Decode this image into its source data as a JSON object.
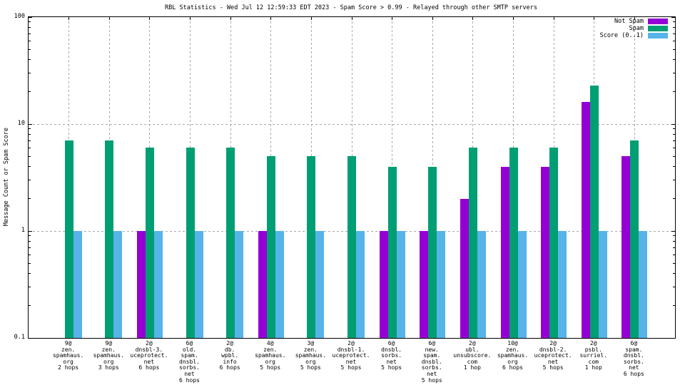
{
  "title": "RBL Statistics - Wed Jul 12 12:59:33 EDT 2023 - Spam Score > 0.99 - Relayed through other SMTP servers",
  "ylabel": "Message Count or Spam Score",
  "legend": [
    {
      "label": "Not Spam",
      "color": "#9400d3"
    },
    {
      "label": "Spam",
      "color": "#009e73"
    },
    {
      "label": "Score (0..1)",
      "color": "#56b4e9"
    }
  ],
  "chart_data": {
    "type": "bar",
    "y_scale": "log",
    "ylim": [
      0.1,
      100
    ],
    "grid": true,
    "legend_position": "top-right-inside",
    "y_ticks": [
      {
        "label": "100",
        "value": 100
      },
      {
        "label": "10",
        "value": 10
      },
      {
        "label": "1",
        "value": 1
      },
      {
        "label": "0.1",
        "value": 0.1
      }
    ],
    "grid_y_values": [
      10,
      1
    ],
    "categories": [
      [
        "9@",
        "zen.",
        "spamhaus.",
        "org",
        "2 hops"
      ],
      [
        "9@",
        "zen.",
        "spamhaus.",
        "org",
        "3 hops"
      ],
      [
        "2@",
        "dnsbl-3.",
        "uceprotect.",
        "net",
        "6 hops"
      ],
      [
        "6@",
        "old.",
        "spam.",
        "dnsbl.",
        "sorbs.",
        "net",
        "6 hops"
      ],
      [
        "2@",
        "db.",
        "wpbl.",
        "info",
        "6 hops"
      ],
      [
        "4@",
        "zen.",
        "spamhaus.",
        "org",
        "5 hops"
      ],
      [
        "3@",
        "zen.",
        "spamhaus.",
        "org",
        "5 hops"
      ],
      [
        "2@",
        "dnsbl-1.",
        "uceprotect.",
        "net",
        "5 hops"
      ],
      [
        "6@",
        "dnsbl.",
        "sorbs.",
        "net",
        "5 hops"
      ],
      [
        "6@",
        "new.",
        "spam.",
        "dnsbl.",
        "sorbs.",
        "net",
        "5 hops"
      ],
      [
        "2@",
        "ubl.",
        "unsubscore.",
        "com",
        "1 hop"
      ],
      [
        "10@",
        "zen.",
        "spamhaus.",
        "org",
        "6 hops"
      ],
      [
        "2@",
        "dnsbl-2.",
        "uceprotect.",
        "net",
        "5 hops"
      ],
      [
        "2@",
        "psbl.",
        "surriel.",
        "com",
        "1 hop"
      ],
      [
        "6@",
        "spam.",
        "dnsbl.",
        "sorbs.",
        "net",
        "6 hops"
      ]
    ],
    "series": [
      {
        "name": "Not Spam",
        "color": "#9400d3",
        "values": [
          null,
          null,
          1,
          null,
          null,
          1,
          null,
          null,
          1,
          1,
          2,
          4,
          4,
          16,
          5
        ]
      },
      {
        "name": "Spam",
        "color": "#009e73",
        "values": [
          7,
          7,
          6,
          6,
          6,
          5,
          5,
          5,
          4,
          4,
          6,
          6,
          6,
          23,
          7
        ]
      },
      {
        "name": "Score (0..1)",
        "color": "#56b4e9",
        "values": [
          1,
          1,
          1,
          1,
          1,
          1,
          1,
          1,
          1,
          1,
          1,
          1,
          1,
          1,
          1
        ]
      }
    ]
  }
}
